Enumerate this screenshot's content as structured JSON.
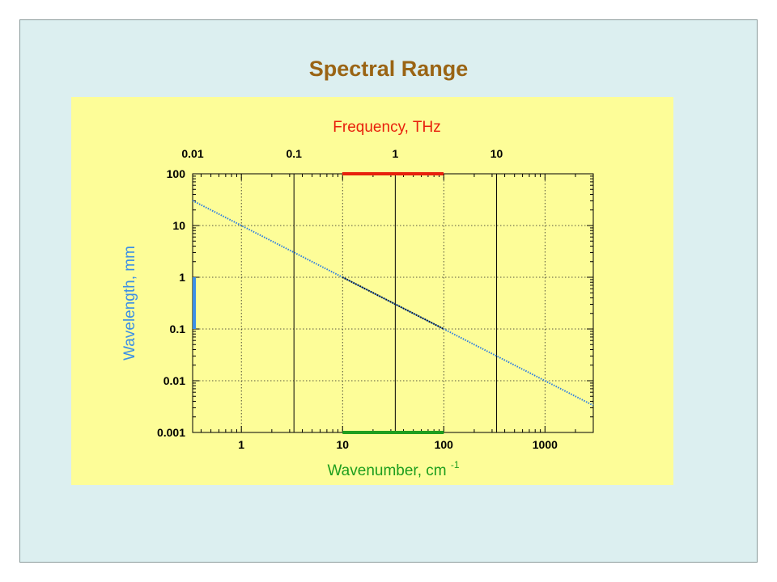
{
  "slide": {
    "title": "Spectral Range",
    "title_color": "#9a6414",
    "background": "#dceff0"
  },
  "chart_data": {
    "type": "line",
    "title": "",
    "panel_background": "#fdfd98",
    "x_axis": {
      "label": "Wavenumber, cm",
      "label_superscript": "-1",
      "label_color": "#1e9e1e",
      "scale": "log",
      "range": [
        0.33,
        3000
      ],
      "ticks": [
        1,
        10,
        100,
        1000
      ],
      "tick_labels": [
        "1",
        "10",
        "100",
        "1000"
      ]
    },
    "x2_axis": {
      "label": "Frequency, THz",
      "label_color": "#e8200c",
      "scale": "log",
      "range": [
        0.01,
        90
      ],
      "ticks": [
        0.01,
        0.1,
        1,
        10
      ],
      "tick_labels": [
        "0.01",
        "0.1",
        "1",
        "10"
      ]
    },
    "y_axis": {
      "label": "Wavelength, mm",
      "label_color": "#3b8fe6",
      "scale": "log",
      "range": [
        0.001,
        100
      ],
      "ticks": [
        0.001,
        0.01,
        0.1,
        1,
        10,
        100
      ],
      "tick_labels": [
        "0.001",
        "0.01",
        "0.1",
        "1",
        "10",
        "100"
      ]
    },
    "grid": true,
    "series": [
      {
        "x": [
          0.33,
          3000
        ],
        "y": [
          30.3,
          0.00333
        ],
        "color": "#2e7de0",
        "style": "dotted"
      },
      {
        "x": [
          10,
          100
        ],
        "y": [
          1,
          0.1
        ],
        "color": "#111111",
        "style": "dotted"
      }
    ],
    "range_bars": [
      {
        "axis": "x2",
        "from": 0.3,
        "to": 3,
        "color": "#e8200c"
      },
      {
        "axis": "x",
        "from": 10,
        "to": 100,
        "color": "#1e9e1e"
      },
      {
        "axis": "y",
        "from": 0.1,
        "to": 1,
        "color": "#3b8fe6"
      }
    ]
  }
}
